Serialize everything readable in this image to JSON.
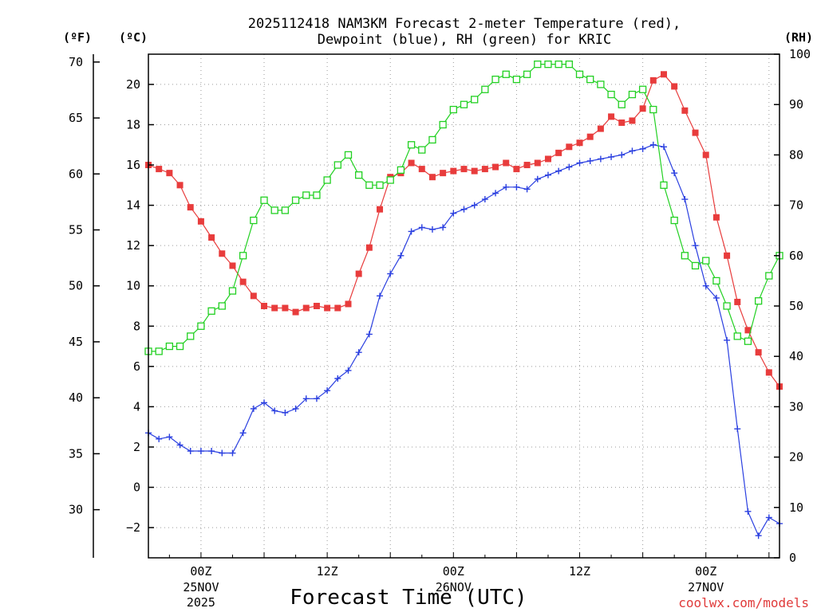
{
  "chart_data": {
    "type": "line",
    "title_line1": "2025112418 NAM3KM Forecast 2-meter Temperature (red),",
    "title_line2": "Dewpoint (blue), RH (green) for KRIC",
    "xlabel": "Forecast Time (UTC)",
    "credit": "coolwx.com/models",
    "units": {
      "fahrenheit": "(ºF)",
      "celsius": "(ºC)",
      "rh": "(RH)"
    },
    "x_range_hours": [
      -5,
      55
    ],
    "ylim_celsius": [
      -3.5,
      21.5
    ],
    "ylim_rh": [
      0,
      100
    ],
    "celsius_ticks": [
      "-2",
      "0",
      "2",
      "4",
      "6",
      "8",
      "10",
      "12",
      "14",
      "16",
      "18",
      "20"
    ],
    "fahrenheit_ticks": [
      "30",
      "35",
      "40",
      "45",
      "50",
      "55",
      "60",
      "65",
      "70"
    ],
    "rh_ticks": [
      "0",
      "10",
      "20",
      "30",
      "40",
      "50",
      "60",
      "70",
      "80",
      "90",
      "100"
    ],
    "x_ticks": [
      {
        "hour": 0,
        "line1": "00Z",
        "line2": "25NOV",
        "line3": "2025"
      },
      {
        "hour": 12,
        "line1": "12Z",
        "line2": "",
        "line3": ""
      },
      {
        "hour": 24,
        "line1": "00Z",
        "line2": "26NOV",
        "line3": ""
      },
      {
        "hour": 36,
        "line1": "12Z",
        "line2": "",
        "line3": ""
      },
      {
        "hour": 48,
        "line1": "00Z",
        "line2": "27NOV",
        "line3": ""
      }
    ],
    "hours": [
      -5,
      -4,
      -3,
      -2,
      -1,
      0,
      1,
      2,
      3,
      4,
      5,
      6,
      7,
      8,
      9,
      10,
      11,
      12,
      13,
      14,
      15,
      16,
      17,
      18,
      19,
      20,
      21,
      22,
      23,
      24,
      25,
      26,
      27,
      28,
      29,
      30,
      31,
      32,
      33,
      34,
      35,
      36,
      37,
      38,
      39,
      40,
      41,
      42,
      43,
      44,
      45,
      46,
      47,
      48,
      49,
      50,
      51,
      52,
      53,
      54,
      55
    ],
    "series": [
      {
        "name": "2-meter Temperature",
        "axis": "celsius",
        "color": "#e83c3c",
        "marker": "filled-square",
        "values": [
          16.0,
          15.8,
          15.6,
          15.0,
          13.9,
          13.2,
          12.4,
          11.6,
          11.0,
          10.2,
          9.5,
          9.0,
          8.9,
          8.9,
          8.7,
          8.9,
          9.0,
          8.9,
          8.9,
          9.1,
          10.6,
          11.9,
          13.8,
          15.4,
          15.6,
          16.1,
          15.8,
          15.4,
          15.6,
          15.7,
          15.8,
          15.7,
          15.8,
          15.9,
          16.1,
          15.8,
          16.0,
          16.1,
          16.3,
          16.6,
          16.9,
          17.1,
          17.4,
          17.8,
          18.4,
          18.1,
          18.2,
          18.8,
          20.2,
          20.5,
          19.9,
          18.7,
          17.6,
          16.5,
          13.4,
          11.5,
          9.2,
          7.8,
          6.7,
          5.7,
          5.0
        ]
      },
      {
        "name": "Dewpoint",
        "axis": "celsius",
        "color": "#2a3fe0",
        "marker": "plus",
        "values": [
          2.7,
          2.4,
          2.5,
          2.1,
          1.8,
          1.8,
          1.8,
          1.7,
          1.7,
          2.7,
          3.9,
          4.2,
          3.8,
          3.7,
          3.9,
          4.4,
          4.4,
          4.8,
          5.4,
          5.8,
          6.7,
          7.6,
          9.5,
          10.6,
          11.5,
          12.7,
          12.9,
          12.8,
          12.9,
          13.6,
          13.8,
          14.0,
          14.3,
          14.6,
          14.9,
          14.9,
          14.8,
          15.3,
          15.5,
          15.7,
          15.9,
          16.1,
          16.2,
          16.3,
          16.4,
          16.5,
          16.7,
          16.8,
          17.0,
          16.9,
          15.6,
          14.3,
          12.0,
          10.0,
          9.4,
          7.3,
          2.9,
          -1.2,
          -2.4,
          -1.5,
          -1.8
        ]
      },
      {
        "name": "RH",
        "axis": "rh",
        "color": "#22d022",
        "marker": "open-square",
        "values": [
          41,
          41,
          42,
          42,
          44,
          46,
          49,
          50,
          53,
          60,
          67,
          71,
          69,
          69,
          71,
          72,
          72,
          75,
          78,
          80,
          76,
          74,
          74,
          75,
          77,
          82,
          81,
          83,
          86,
          89,
          90,
          91,
          93,
          95,
          96,
          95,
          96,
          98,
          98,
          98,
          98,
          96,
          95,
          94,
          92,
          90,
          92,
          93,
          89,
          74,
          67,
          60,
          58,
          59,
          55,
          50,
          44,
          43,
          51,
          56,
          60
        ]
      }
    ]
  }
}
